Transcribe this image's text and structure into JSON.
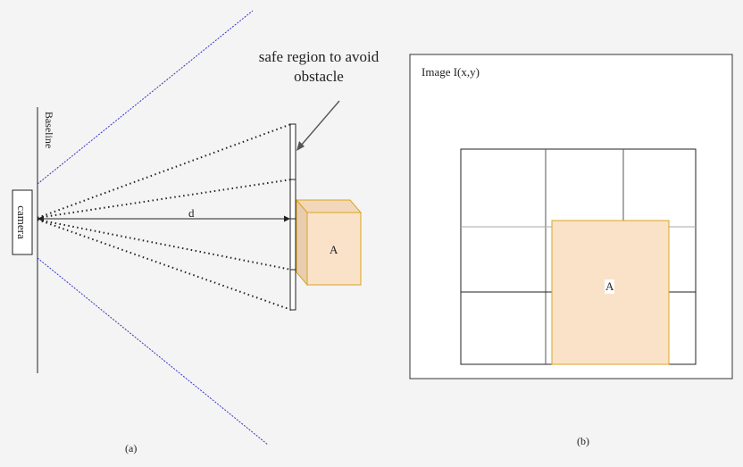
{
  "left_panel": {
    "annotation": "safe region to avoid obstacle",
    "baseline_label": "Baseline",
    "camera_label": "camera",
    "distance_label": "d",
    "obstacle_label": "A",
    "caption": "(a)"
  },
  "right_panel": {
    "image_label": "Image I(x,y)",
    "obstacle_label": "A",
    "caption": "(b)"
  },
  "colors": {
    "obstacle_fill": "#f9e2c8",
    "obstacle_side": "#e8cdb0",
    "obstacle_stroke": "#d9a520",
    "fov_line": "#3333cc",
    "line": "#222222"
  }
}
